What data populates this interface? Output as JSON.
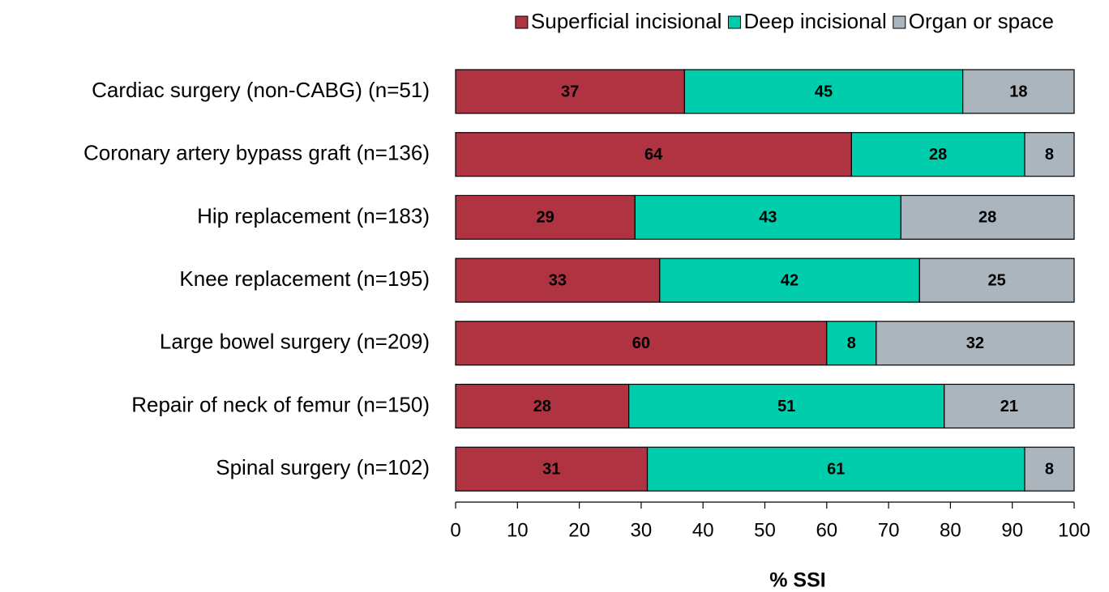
{
  "chart_data": {
    "type": "stacked_bar_horizontal",
    "x_label": "% SSI",
    "categories": [
      "Cardiac surgery (non-CABG) (n=51)",
      "Coronary artery bypass graft (n=136)",
      "Hip replacement (n=183)",
      "Knee replacement (n=195)",
      "Large bowel surgery (n=209)",
      "Repair of neck of femur (n=150)",
      "Spinal surgery (n=102)"
    ],
    "series": [
      {
        "name": "Superficial incisional",
        "color": "#b03342",
        "values": [
          37,
          64,
          29,
          33,
          60,
          28,
          31
        ]
      },
      {
        "name": "Deep incisional",
        "color": "#00cdab",
        "values": [
          45,
          28,
          43,
          42,
          8,
          51,
          61
        ]
      },
      {
        "name": "Organ or space",
        "color": "#abb5bd",
        "values": [
          18,
          8,
          28,
          25,
          32,
          21,
          8
        ]
      }
    ],
    "xlim": [
      0,
      100
    ],
    "xticks": [
      0,
      10,
      20,
      30,
      40,
      50,
      60,
      70,
      80,
      90,
      100
    ],
    "legend": "top"
  }
}
